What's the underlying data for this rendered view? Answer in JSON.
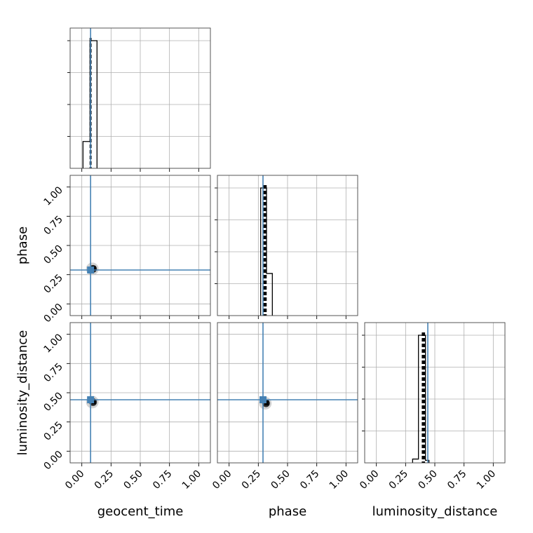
{
  "chart_data": {
    "type": "corner",
    "parameters": [
      "geocent_time",
      "phase",
      "luminosity_distance"
    ],
    "axis_range": [
      -0.1,
      1.1
    ],
    "ticks": [
      0.0,
      0.25,
      0.5,
      0.75,
      1.0
    ],
    "tick_labels": [
      "0.00",
      "0.25",
      "0.50",
      "0.75",
      "1.00"
    ],
    "grid": true,
    "colors": {
      "truth": "#4682b4",
      "samples": "#000000",
      "grid": "#b0b0b0"
    },
    "truths": {
      "geocent_time": 0.075,
      "phase": 0.29,
      "luminosity_distance": 0.44
    },
    "histograms": {
      "geocent_time": {
        "bin_edges": [
          0.01,
          0.07,
          0.13
        ],
        "counts": [
          0.21,
          1.0
        ],
        "quantiles": [
          0.073,
          0.077
        ]
      },
      "phase": {
        "bin_edges": [
          0.27,
          0.32,
          0.37
        ],
        "counts": [
          1.0,
          0.33
        ],
        "quantiles": [
          0.295,
          0.305,
          0.315
        ]
      },
      "luminosity_distance": {
        "bin_edges": [
          0.31,
          0.36,
          0.39,
          0.42,
          0.45
        ],
        "counts": [
          0.03,
          1.0,
          1.0,
          0.02
        ],
        "quantiles": [
          0.395,
          0.405,
          0.41
        ]
      }
    },
    "samples_2d": [
      {
        "x": "geocent_time",
        "y": "phase",
        "cx": 0.09,
        "cy": 0.3
      },
      {
        "x": "geocent_time",
        "y": "luminosity_distance",
        "cx": 0.09,
        "cy": 0.42
      },
      {
        "x": "phase",
        "y": "luminosity_distance",
        "cx": 0.31,
        "cy": 0.41
      }
    ]
  }
}
